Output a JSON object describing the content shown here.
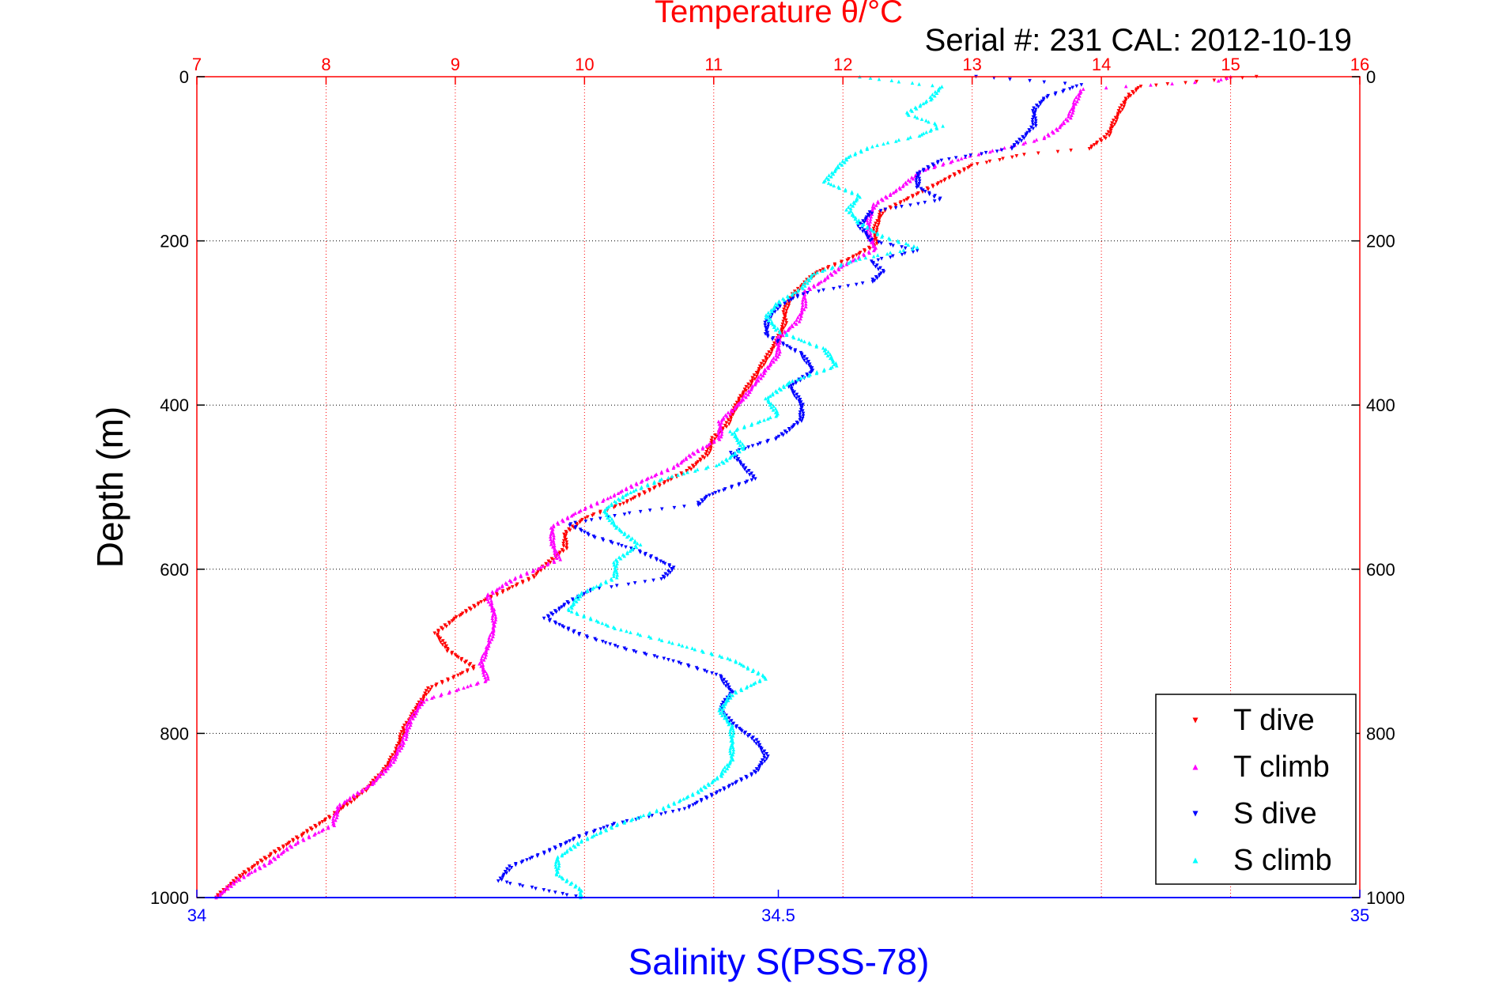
{
  "chart_data": {
    "type": "scatter",
    "title": "Temperature θ/°C",
    "subtitle": "Serial #: 231  CAL: 2012-10-19",
    "ylabel": "Depth (m)",
    "xlabel_bottom": "Salinity S(PSS-78)",
    "y_axis": {
      "range": [
        0,
        1000
      ],
      "reversed": true,
      "ticks": [
        "0",
        "200",
        "400",
        "600",
        "800",
        "1000"
      ],
      "grid": true
    },
    "x_axis_top": {
      "quantity": "temperature",
      "range": [
        7,
        16
      ],
      "ticks": [
        "7",
        "8",
        "9",
        "10",
        "11",
        "12",
        "13",
        "14",
        "15",
        "16"
      ],
      "grid": true,
      "color": "#ff0000"
    },
    "x_axis_bottom": {
      "quantity": "salinity",
      "range": [
        34,
        35
      ],
      "ticks": [
        "34",
        "34.5",
        "35"
      ],
      "color": "#0000ff"
    },
    "legend": {
      "position": "bottom-right"
    },
    "series": [
      {
        "name": "T dive",
        "axis": "temperature",
        "color": "#ff0000",
        "marker": "triangle-down",
        "points": [
          [
            15.2,
            0
          ],
          [
            14.3,
            12
          ],
          [
            14.2,
            25
          ],
          [
            14.15,
            40
          ],
          [
            14.1,
            55
          ],
          [
            14.05,
            72
          ],
          [
            13.9,
            88
          ],
          [
            13.4,
            95
          ],
          [
            13.0,
            108
          ],
          [
            12.8,
            125
          ],
          [
            12.55,
            145
          ],
          [
            12.3,
            165
          ],
          [
            12.25,
            185
          ],
          [
            12.25,
            205
          ],
          [
            12.05,
            222
          ],
          [
            11.8,
            238
          ],
          [
            11.7,
            252
          ],
          [
            11.6,
            268
          ],
          [
            11.55,
            285
          ],
          [
            11.55,
            300
          ],
          [
            11.5,
            320
          ],
          [
            11.4,
            345
          ],
          [
            11.3,
            370
          ],
          [
            11.2,
            392
          ],
          [
            11.15,
            410
          ],
          [
            11.1,
            425
          ],
          [
            11.0,
            440
          ],
          [
            10.95,
            460
          ],
          [
            10.8,
            480
          ],
          [
            10.55,
            500
          ],
          [
            10.3,
            520
          ],
          [
            10.0,
            538
          ],
          [
            9.85,
            556
          ],
          [
            9.85,
            575
          ],
          [
            9.7,
            595
          ],
          [
            9.6,
            610
          ],
          [
            9.4,
            625
          ],
          [
            9.2,
            640
          ],
          [
            9.0,
            660
          ],
          [
            8.85,
            678
          ],
          [
            8.95,
            700
          ],
          [
            9.15,
            720
          ],
          [
            8.8,
            745
          ],
          [
            8.7,
            770
          ],
          [
            8.6,
            795
          ],
          [
            8.55,
            820
          ],
          [
            8.45,
            845
          ],
          [
            8.3,
            870
          ],
          [
            8.05,
            900
          ],
          [
            7.8,
            925
          ],
          [
            7.55,
            950
          ],
          [
            7.35,
            972
          ],
          [
            7.15,
            1000
          ]
        ]
      },
      {
        "name": "T climb",
        "axis": "temperature",
        "color": "#ff00ff",
        "marker": "triangle-up",
        "points": [
          [
            15.0,
            0
          ],
          [
            14.9,
            5
          ],
          [
            13.85,
            15
          ],
          [
            13.8,
            30
          ],
          [
            13.75,
            50
          ],
          [
            13.65,
            65
          ],
          [
            13.55,
            75
          ],
          [
            13.3,
            85
          ],
          [
            12.95,
            98
          ],
          [
            12.6,
            115
          ],
          [
            12.45,
            135
          ],
          [
            12.25,
            155
          ],
          [
            12.2,
            172
          ],
          [
            12.2,
            192
          ],
          [
            12.25,
            210
          ],
          [
            12.0,
            230
          ],
          [
            11.85,
            248
          ],
          [
            11.7,
            262
          ],
          [
            11.7,
            280
          ],
          [
            11.65,
            298
          ],
          [
            11.5,
            318
          ],
          [
            11.5,
            338
          ],
          [
            11.4,
            358
          ],
          [
            11.3,
            378
          ],
          [
            11.2,
            398
          ],
          [
            11.05,
            420
          ],
          [
            11.05,
            440
          ],
          [
            10.85,
            458
          ],
          [
            10.7,
            475
          ],
          [
            10.45,
            492
          ],
          [
            10.2,
            512
          ],
          [
            9.95,
            530
          ],
          [
            9.75,
            548
          ],
          [
            9.75,
            568
          ],
          [
            9.8,
            588
          ],
          [
            9.45,
            612
          ],
          [
            9.25,
            632
          ],
          [
            9.3,
            652
          ],
          [
            9.3,
            672
          ],
          [
            9.25,
            695
          ],
          [
            9.2,
            715
          ],
          [
            9.25,
            735
          ],
          [
            8.75,
            760
          ],
          [
            8.65,
            785
          ],
          [
            8.6,
            810
          ],
          [
            8.5,
            838
          ],
          [
            8.35,
            862
          ],
          [
            8.1,
            888
          ],
          [
            8.05,
            912
          ],
          [
            7.75,
            935
          ],
          [
            7.55,
            958
          ],
          [
            7.3,
            980
          ],
          [
            7.15,
            1000
          ]
        ]
      },
      {
        "name": "S dive",
        "axis": "salinity",
        "color": "#0000ff",
        "marker": "triangle-down",
        "points": [
          [
            34.67,
            0
          ],
          [
            34.76,
            10
          ],
          [
            34.73,
            25
          ],
          [
            34.72,
            40
          ],
          [
            34.72,
            60
          ],
          [
            34.71,
            75
          ],
          [
            34.7,
            88
          ],
          [
            34.64,
            102
          ],
          [
            34.62,
            118
          ],
          [
            34.62,
            135
          ],
          [
            34.64,
            150
          ],
          [
            34.58,
            165
          ],
          [
            34.57,
            182
          ],
          [
            34.58,
            200
          ],
          [
            34.62,
            212
          ],
          [
            34.58,
            225
          ],
          [
            34.59,
            238
          ],
          [
            34.58,
            250
          ],
          [
            34.52,
            265
          ],
          [
            34.5,
            280
          ],
          [
            34.49,
            298
          ],
          [
            34.49,
            315
          ],
          [
            34.52,
            338
          ],
          [
            34.53,
            358
          ],
          [
            34.51,
            378
          ],
          [
            34.52,
            398
          ],
          [
            34.52,
            418
          ],
          [
            34.5,
            440
          ],
          [
            34.46,
            458
          ],
          [
            34.47,
            475
          ],
          [
            34.48,
            490
          ],
          [
            34.44,
            510
          ],
          [
            34.43,
            522
          ],
          [
            34.38,
            530
          ],
          [
            34.32,
            545
          ],
          [
            34.34,
            560
          ],
          [
            34.38,
            578
          ],
          [
            34.41,
            598
          ],
          [
            34.4,
            612
          ],
          [
            34.34,
            625
          ],
          [
            34.32,
            640
          ],
          [
            34.3,
            660
          ],
          [
            34.33,
            680
          ],
          [
            34.37,
            698
          ],
          [
            34.41,
            712
          ],
          [
            34.45,
            730
          ],
          [
            34.46,
            750
          ],
          [
            34.45,
            770
          ],
          [
            34.46,
            788
          ],
          [
            34.48,
            808
          ],
          [
            34.49,
            828
          ],
          [
            34.48,
            848
          ],
          [
            34.45,
            870
          ],
          [
            34.42,
            892
          ],
          [
            34.36,
            910
          ],
          [
            34.33,
            925
          ],
          [
            34.3,
            945
          ],
          [
            34.27,
            962
          ],
          [
            34.26,
            980
          ],
          [
            34.33,
            1000
          ]
        ]
      },
      {
        "name": "S climb",
        "axis": "salinity",
        "color": "#00ffff",
        "marker": "triangle-up",
        "points": [
          [
            34.57,
            0
          ],
          [
            34.64,
            12
          ],
          [
            34.63,
            28
          ],
          [
            34.61,
            45
          ],
          [
            34.64,
            60
          ],
          [
            34.62,
            72
          ],
          [
            34.58,
            85
          ],
          [
            34.56,
            98
          ],
          [
            34.55,
            112
          ],
          [
            34.54,
            128
          ],
          [
            34.57,
            145
          ],
          [
            34.56,
            162
          ],
          [
            34.57,
            178
          ],
          [
            34.59,
            195
          ],
          [
            34.62,
            208
          ],
          [
            34.57,
            222
          ],
          [
            34.53,
            240
          ],
          [
            34.52,
            258
          ],
          [
            34.5,
            275
          ],
          [
            34.49,
            292
          ],
          [
            34.5,
            310
          ],
          [
            34.54,
            332
          ],
          [
            34.55,
            352
          ],
          [
            34.51,
            372
          ],
          [
            34.49,
            392
          ],
          [
            34.5,
            412
          ],
          [
            34.46,
            432
          ],
          [
            34.47,
            452
          ],
          [
            34.45,
            472
          ],
          [
            34.4,
            490
          ],
          [
            34.37,
            508
          ],
          [
            34.35,
            528
          ],
          [
            34.36,
            548
          ],
          [
            34.38,
            570
          ],
          [
            34.36,
            590
          ],
          [
            34.36,
            610
          ],
          [
            34.33,
            630
          ],
          [
            34.32,
            650
          ],
          [
            34.36,
            672
          ],
          [
            34.41,
            690
          ],
          [
            34.46,
            710
          ],
          [
            34.49,
            732
          ],
          [
            34.46,
            752
          ],
          [
            34.45,
            772
          ],
          [
            34.46,
            792
          ],
          [
            34.46,
            812
          ],
          [
            34.46,
            832
          ],
          [
            34.45,
            852
          ],
          [
            34.43,
            872
          ],
          [
            34.4,
            892
          ],
          [
            34.36,
            912
          ],
          [
            34.33,
            932
          ],
          [
            34.31,
            952
          ],
          [
            34.31,
            972
          ],
          [
            34.33,
            990
          ],
          [
            34.33,
            1000
          ]
        ]
      }
    ]
  }
}
